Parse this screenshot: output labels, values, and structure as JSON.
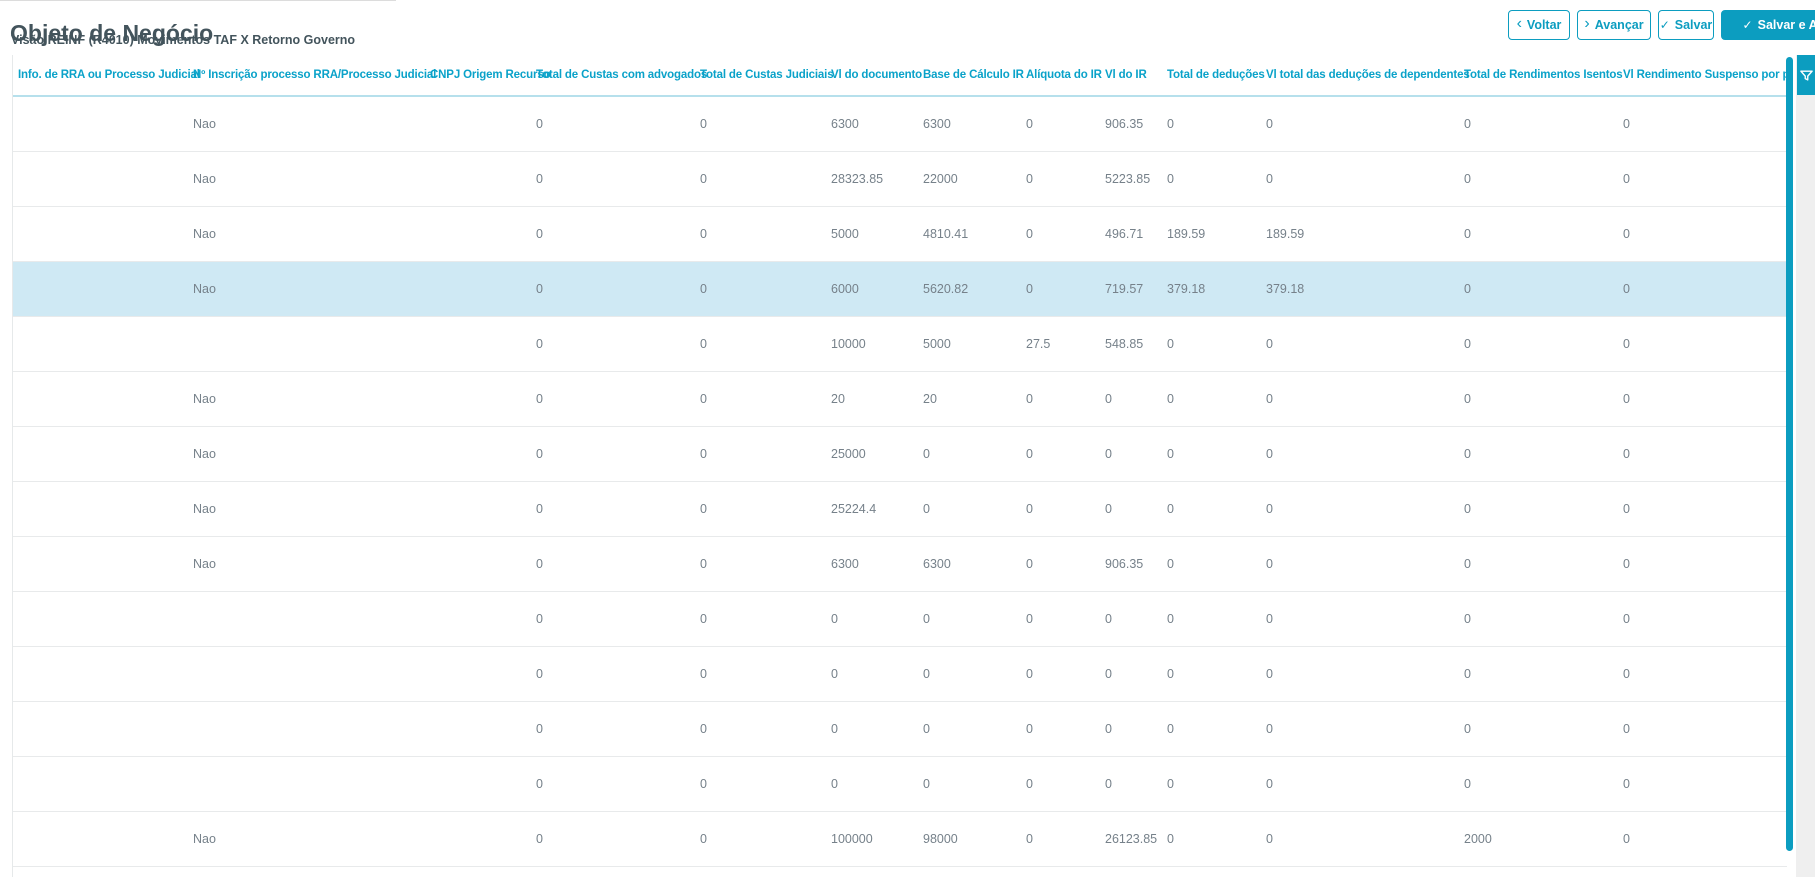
{
  "page": {
    "title": "Objeto de Negócio",
    "subtitle": "Visão REINF (R4010) Movimentos TAF X Retorno Governo"
  },
  "toolbar": {
    "back_label": "Voltar",
    "forward_label": "Avançar",
    "save_label": "Salvar",
    "save_forward_label": "Salvar e Avançar",
    "back_icon": "chevron-left-icon",
    "forward_icon": "chevron-right-icon",
    "save_icon": "check-icon",
    "save_forward_icon": "check-icon"
  },
  "side": {
    "filter_icon": "funnel-icon"
  },
  "colors": {
    "accent": "#0c9dc0",
    "header_text": "#0aa2c9",
    "selected_row": "#cfe9f4",
    "panel_gray": "#efefef"
  },
  "table": {
    "columns": [
      "Info. de RRA ou Processo Judicial",
      "Nº Inscrição processo RRA/Processo Judicial",
      "CNPJ Origem Recurso",
      "Total de Custas com advogados",
      "Total de Custas Judiciais",
      "Vl do documento",
      "Base de Cálculo IR",
      "Alíquota do IR",
      "Vl do IR",
      "Total de deduções",
      "Vl total das deduções de dependentes",
      "Total de Rendimentos Isentos",
      "Vl Rendimento Suspenso por proc"
    ],
    "selected_row_index": 3,
    "rows": [
      [
        "",
        "Nao",
        "",
        "0",
        "0",
        "6300",
        "6300",
        "0",
        "906.35",
        "0",
        "0",
        "0",
        "0"
      ],
      [
        "",
        "Nao",
        "",
        "0",
        "0",
        "28323.85",
        "22000",
        "0",
        "5223.85",
        "0",
        "0",
        "0",
        "0"
      ],
      [
        "",
        "Nao",
        "",
        "0",
        "0",
        "5000",
        "4810.41",
        "0",
        "496.71",
        "189.59",
        "189.59",
        "0",
        "0"
      ],
      [
        "",
        "Nao",
        "",
        "0",
        "0",
        "6000",
        "5620.82",
        "0",
        "719.57",
        "379.18",
        "379.18",
        "0",
        "0"
      ],
      [
        "",
        "",
        "",
        "0",
        "0",
        "10000",
        "5000",
        "27.5",
        "548.85",
        "0",
        "0",
        "0",
        "0"
      ],
      [
        "",
        "Nao",
        "",
        "0",
        "0",
        "20",
        "20",
        "0",
        "0",
        "0",
        "0",
        "0",
        "0"
      ],
      [
        "",
        "Nao",
        "",
        "0",
        "0",
        "25000",
        "0",
        "0",
        "0",
        "0",
        "0",
        "0",
        "0"
      ],
      [
        "",
        "Nao",
        "",
        "0",
        "0",
        "25224.4",
        "0",
        "0",
        "0",
        "0",
        "0",
        "0",
        "0"
      ],
      [
        "",
        "Nao",
        "",
        "0",
        "0",
        "6300",
        "6300",
        "0",
        "906.35",
        "0",
        "0",
        "0",
        "0"
      ],
      [
        "",
        "",
        "",
        "0",
        "0",
        "0",
        "0",
        "0",
        "0",
        "0",
        "0",
        "0",
        "0"
      ],
      [
        "",
        "",
        "",
        "0",
        "0",
        "0",
        "0",
        "0",
        "0",
        "0",
        "0",
        "0",
        "0"
      ],
      [
        "",
        "",
        "",
        "0",
        "0",
        "0",
        "0",
        "0",
        "0",
        "0",
        "0",
        "0",
        "0"
      ],
      [
        "",
        "",
        "",
        "0",
        "0",
        "0",
        "0",
        "0",
        "0",
        "0",
        "0",
        "0",
        "0"
      ],
      [
        "",
        "Nao",
        "",
        "0",
        "0",
        "100000",
        "98000",
        "0",
        "26123.85",
        "0",
        "0",
        "2000",
        "0"
      ]
    ]
  }
}
